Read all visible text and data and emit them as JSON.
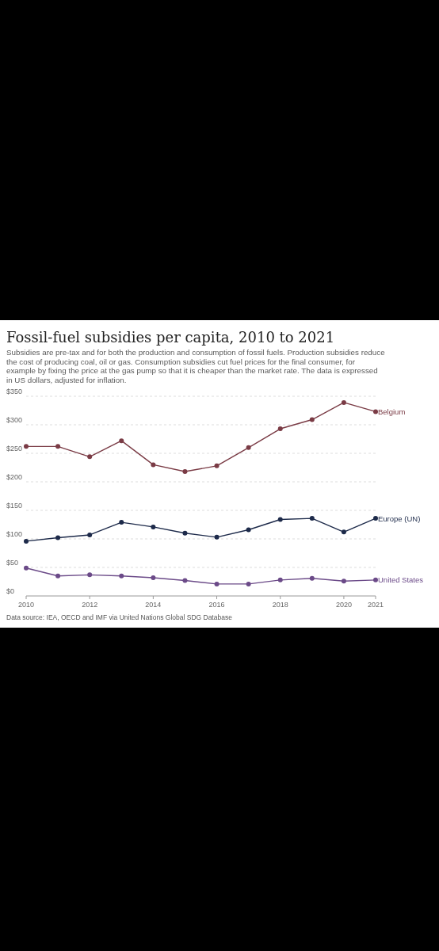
{
  "chart_data": {
    "type": "line",
    "title": "Fossil-fuel subsidies per capita, 2010 to 2021",
    "subtitle": "Subsidies are pre-tax and for both the production and consumption of fossil fuels. Production subsidies reduce the cost of producing coal, oil or gas. Consumption subsidies cut fuel prices for the final consumer, for example by fixing the price at the gas pump so that it is cheaper than the market rate. The data is expressed in US dollars, adjusted for inflation.",
    "annotations": [
      "Data source: IEA, OECD and IMF via United Nations Global SDG Database"
    ],
    "x": [
      2010,
      2011,
      2012,
      2013,
      2014,
      2015,
      2016,
      2017,
      2018,
      2019,
      2020,
      2021
    ],
    "xlim": [
      2010,
      2021
    ],
    "xticks": [
      2010,
      2012,
      2014,
      2016,
      2018,
      2020,
      2021
    ],
    "ylim": [
      0,
      350
    ],
    "yticks": [
      {
        "value": 0,
        "label": "$0"
      },
      {
        "value": 50,
        "label": "$50"
      },
      {
        "value": 100,
        "label": "$100"
      },
      {
        "value": 150,
        "label": "$150"
      },
      {
        "value": 200,
        "label": "$200"
      },
      {
        "value": 250,
        "label": "$250"
      },
      {
        "value": 300,
        "label": "$300"
      },
      {
        "value": 350,
        "label": "$350"
      }
    ],
    "grid": "y",
    "marker": "circle",
    "line_style": "solid",
    "series": [
      {
        "name": "Belgium",
        "color": "#7a3b45",
        "values": [
          262,
          262,
          244,
          272,
          230,
          218,
          228,
          260,
          293,
          309,
          339,
          323
        ]
      },
      {
        "name": "Europe (UN)",
        "color": "#1d2a4a",
        "values": [
          96,
          102,
          107,
          129,
          121,
          110,
          103,
          116,
          134,
          136,
          112,
          136
        ]
      },
      {
        "name": "United States",
        "color": "#6b4a88",
        "values": [
          49,
          35,
          37,
          35,
          32,
          27,
          21,
          21,
          28,
          31,
          26,
          28
        ]
      }
    ]
  }
}
